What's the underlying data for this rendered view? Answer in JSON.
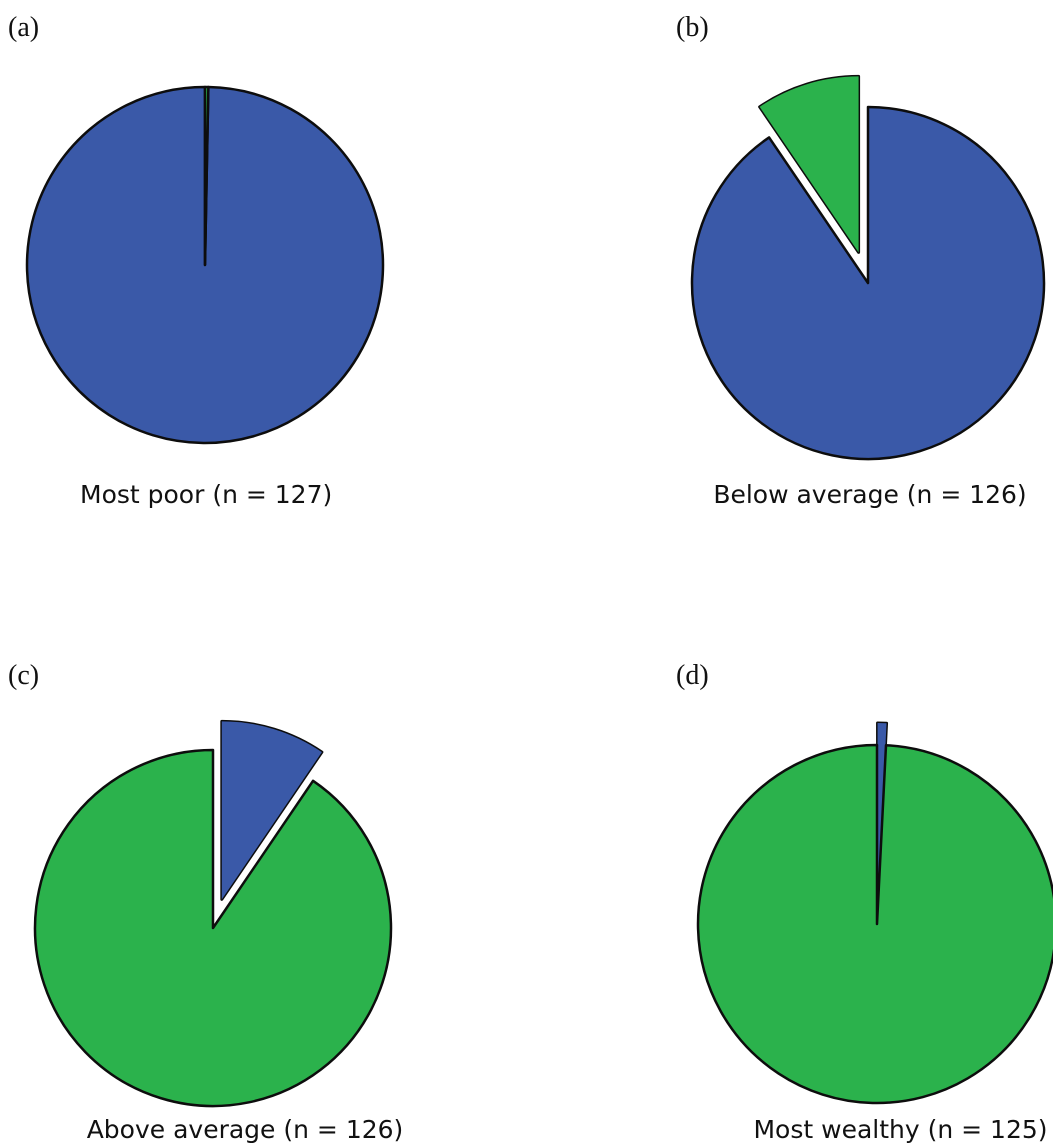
{
  "chart_data": [
    {
      "type": "pie",
      "panel_label": "(a)",
      "caption": "Most poor (n = 127)",
      "slices": [
        {
          "color": "#3a59a8",
          "share": 0.997
        },
        {
          "color": "#2bb24c",
          "share": 0.003
        }
      ]
    },
    {
      "type": "pie",
      "panel_label": "(b)",
      "caption": "Below average (n = 126)",
      "slices": [
        {
          "color": "#3a59a8",
          "share": 0.905
        },
        {
          "color": "#2bb24c",
          "share": 0.095,
          "exploded": true
        }
      ]
    },
    {
      "type": "pie",
      "panel_label": "(c)",
      "caption": "Above average (n = 126)",
      "slices": [
        {
          "color": "#2bb24c",
          "share": 0.905
        },
        {
          "color": "#3a59a8",
          "share": 0.095,
          "exploded": true
        }
      ]
    },
    {
      "type": "pie",
      "panel_label": "(d)",
      "caption": "Most wealthy (n = 125)",
      "slices": [
        {
          "color": "#2bb24c",
          "share": 0.992
        },
        {
          "color": "#3a59a8",
          "share": 0.008,
          "exploded": true
        }
      ]
    }
  ],
  "colors": {
    "blue": "#3a59a8",
    "green": "#2bb24c",
    "outline": "#0d0d0d"
  }
}
